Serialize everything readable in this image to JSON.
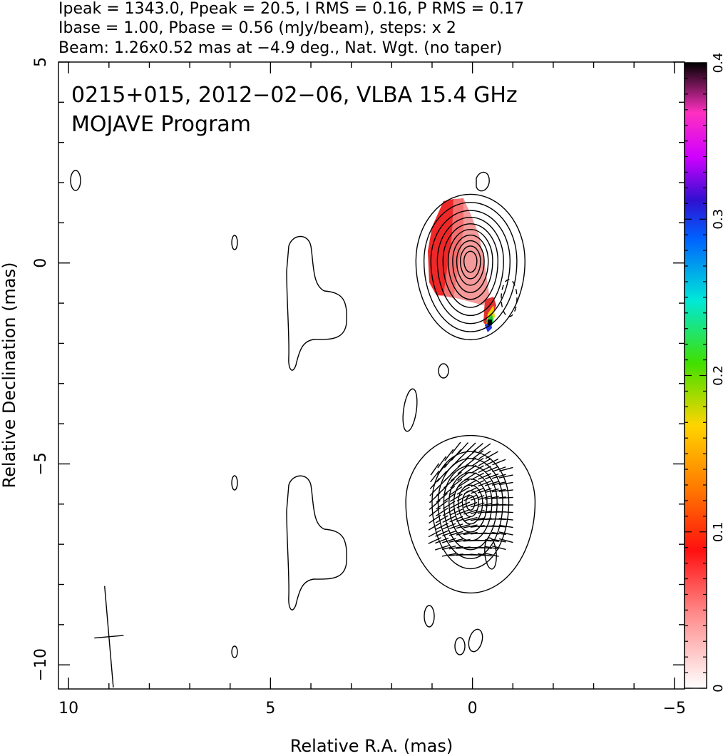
{
  "header": {
    "line1": "Ipeak = 1343.0, Ppeak = 20.5, I RMS = 0.16, P RMS = 0.17",
    "line2": "Ibase = 1.00, Pbase = 0.56 (mJy/beam), steps: x 2",
    "line3": "Beam: 1.26x0.52 mas at −4.9 deg., Nat. Wgt. (no taper)"
  },
  "chart_data": {
    "type": "heatmap",
    "title": "0215+015, 2012−02−06, VLBA 15.4 GHz",
    "subtitle": "MOJAVE Program",
    "xlabel": "Relative R.A. (mas)",
    "ylabel": "Relative Declination (mas)",
    "xlim": [
      10.25,
      -5.25
    ],
    "ylim": [
      -10.6,
      5
    ],
    "x_ticks": [
      {
        "value": 10,
        "label": "10"
      },
      {
        "value": 5,
        "label": "5"
      },
      {
        "value": 0,
        "label": "0"
      },
      {
        "value": -5,
        "label": "−5"
      }
    ],
    "y_ticks": [
      {
        "value": 5,
        "label": "5"
      },
      {
        "value": 0,
        "label": "0"
      },
      {
        "value": -5,
        "label": "−5"
      },
      {
        "value": -10,
        "label": "−10"
      }
    ],
    "colorbar": {
      "range": [
        0,
        0.4
      ],
      "ticks": [
        {
          "value": 0,
          "label": "0"
        },
        {
          "value": 0.1,
          "label": "0.1"
        },
        {
          "value": 0.2,
          "label": "0.2"
        },
        {
          "value": 0.3,
          "label": "0.3"
        },
        {
          "value": 0.4,
          "label": "0.4"
        }
      ]
    },
    "beam": {
      "major_mas": 1.26,
      "minor_mas": 0.52,
      "pa_deg": -4.9,
      "center": [
        9.0,
        -9.3
      ]
    },
    "sources": [
      {
        "name": "upper",
        "center": [
          0.05,
          0.05
        ],
        "levels": [
          {
            "dx": 1.35,
            "up": 1.65,
            "down": 1.95
          },
          {
            "dx": 1.15,
            "up": 1.45,
            "down": 1.75
          },
          {
            "dx": 0.98,
            "up": 1.25,
            "down": 1.55
          },
          {
            "dx": 0.82,
            "up": 1.08,
            "down": 1.35
          },
          {
            "dx": 0.68,
            "up": 0.92,
            "down": 1.15
          },
          {
            "dx": 0.55,
            "up": 0.78,
            "down": 0.95
          },
          {
            "dx": 0.44,
            "up": 0.64,
            "down": 0.78
          },
          {
            "dx": 0.34,
            "up": 0.5,
            "down": 0.6
          },
          {
            "dx": 0.25,
            "up": 0.37,
            "down": 0.44
          },
          {
            "dx": 0.16,
            "up": 0.24,
            "down": 0.28
          }
        ]
      },
      {
        "name": "lower",
        "center": [
          0.05,
          -5.95
        ],
        "levels": [
          {
            "dx": 1.6,
            "up": 1.65,
            "down": 2.25
          },
          {
            "dx": 0.95,
            "up": 1.25,
            "down": 1.65
          },
          {
            "dx": 0.8,
            "up": 1.08,
            "down": 1.4
          },
          {
            "dx": 0.66,
            "up": 0.9,
            "down": 1.18
          },
          {
            "dx": 0.53,
            "up": 0.73,
            "down": 0.96
          },
          {
            "dx": 0.41,
            "up": 0.57,
            "down": 0.74
          },
          {
            "dx": 0.3,
            "up": 0.42,
            "down": 0.54
          },
          {
            "dx": 0.2,
            "up": 0.28,
            "down": 0.36
          },
          {
            "dx": 0.11,
            "up": 0.16,
            "down": 0.2
          }
        ]
      }
    ]
  }
}
